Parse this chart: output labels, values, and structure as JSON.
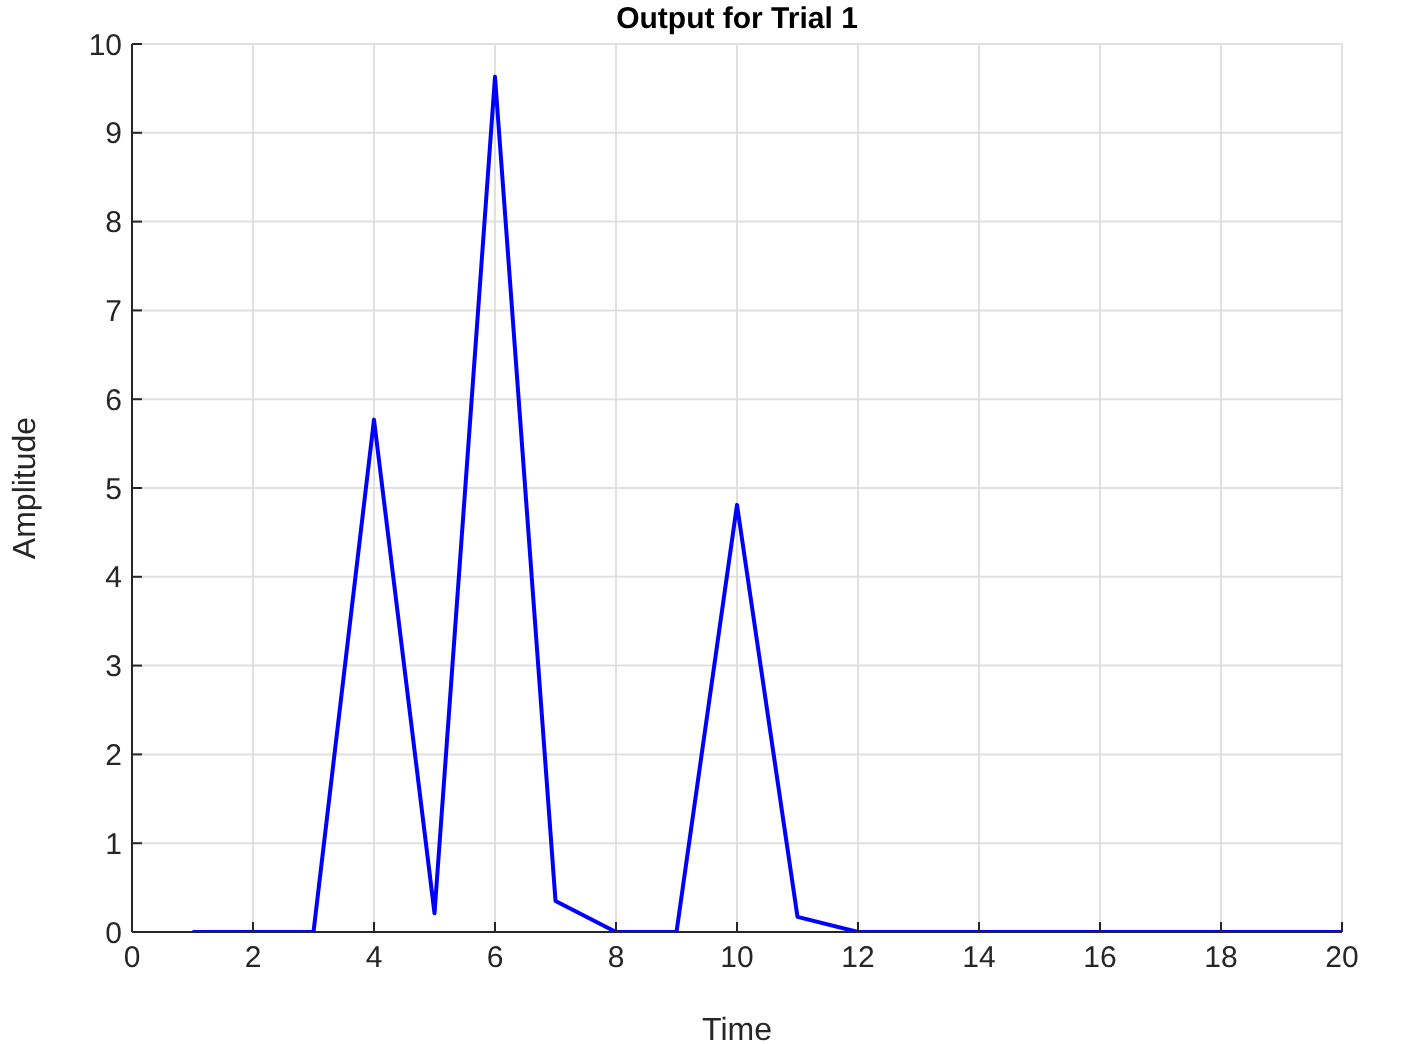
{
  "chart_data": {
    "type": "line",
    "title": "Output for Trial 1",
    "xlabel": "Time",
    "ylabel": "Amplitude",
    "x": [
      1,
      2,
      3,
      4,
      5,
      6,
      7,
      8,
      9,
      10,
      11,
      12,
      13,
      14,
      15,
      16,
      17,
      18,
      19,
      20
    ],
    "series": [
      {
        "color": "#0000ff",
        "values": [
          0,
          0,
          0,
          5.77,
          0.21,
          9.63,
          0.35,
          0,
          0,
          4.81,
          0.17,
          0,
          0,
          0,
          0,
          0,
          0,
          0,
          0,
          0
        ]
      }
    ],
    "xlim": [
      0,
      20
    ],
    "xticks": [
      0,
      2,
      4,
      6,
      8,
      10,
      12,
      14,
      16,
      18,
      20
    ],
    "ylim": [
      0,
      10
    ],
    "yticks": [
      0,
      1,
      2,
      3,
      4,
      5,
      6,
      7,
      8,
      9,
      10
    ],
    "grid": true,
    "legend": false,
    "marker": "none",
    "line_style": "solid"
  }
}
